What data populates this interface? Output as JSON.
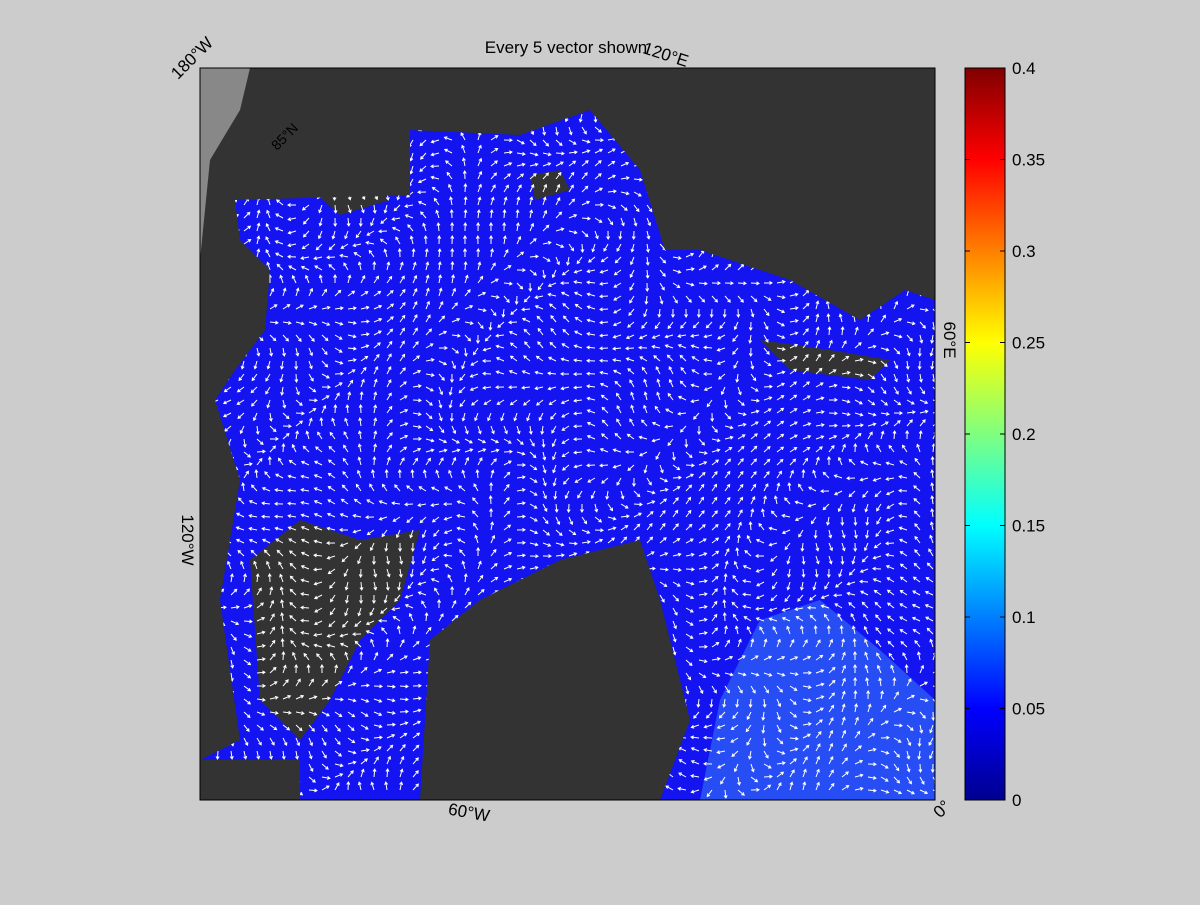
{
  "title": "Every 5 vector shown",
  "map": {
    "labels": [
      "180°W",
      "120°E",
      "60°E",
      "0°",
      "60°W",
      "120°W",
      "85°N"
    ]
  },
  "colorbar": {
    "lim": [
      0,
      0.4
    ],
    "ticks": [
      0,
      0.05,
      0.1,
      0.15,
      0.2,
      0.25,
      0.3,
      0.35,
      0.4
    ]
  }
}
